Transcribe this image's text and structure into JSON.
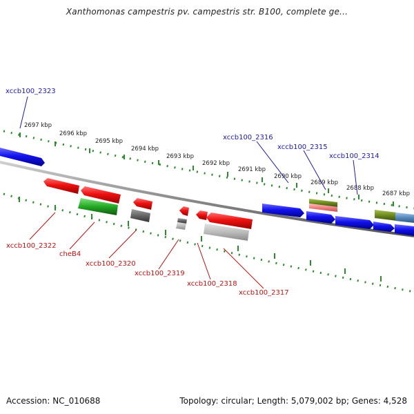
{
  "title": "Xanthomonas campestris pv. campestris str. B100, complete ge...",
  "footer": {
    "accession": "Accession: NC_010688",
    "summary": "Topology: circular; Length: 5,079,002 bp; Genes: 4,528"
  },
  "ticks": [
    {
      "label": "2697 kbp"
    },
    {
      "label": "2696 kbp"
    },
    {
      "label": "2695 kbp"
    },
    {
      "label": "2694 kbp"
    },
    {
      "label": "2693 kbp"
    },
    {
      "label": "2692 kbp"
    },
    {
      "label": "2691 kbp"
    },
    {
      "label": "2690 kbp"
    },
    {
      "label": "2689 kbp"
    },
    {
      "label": "2688 kbp"
    },
    {
      "label": "2687 kbp"
    }
  ],
  "gene_labels": {
    "xccb100_2323": "xccb100_2323",
    "xccb100_2316": "xccb100_2316",
    "xccb100_2315": "xccb100_2315",
    "xccb100_2314": "xccb100_2314",
    "xccb100_2322": "xccb100_2322",
    "cheB4": "cheB4",
    "xccb100_2320": "xccb100_2320",
    "xccb100_2319": "xccb100_2319",
    "xccb100_2318": "xccb100_2318",
    "xccb100_2317": "xccb100_2317"
  },
  "colors": {
    "forward": "#1010ee",
    "reverse": "#ee1111",
    "gene_green": "#22aa22",
    "gene_gray": "#777777",
    "gene_light_gray": "#bbbbbb",
    "olive": "#6e8a1e",
    "pink": "#f07f7f",
    "steel_blue": "#5588bb",
    "axis": "#888888",
    "scale_dots": "#2b8a2b",
    "label_forward": "#1a1aa8",
    "label_reverse": "#bb1111"
  }
}
